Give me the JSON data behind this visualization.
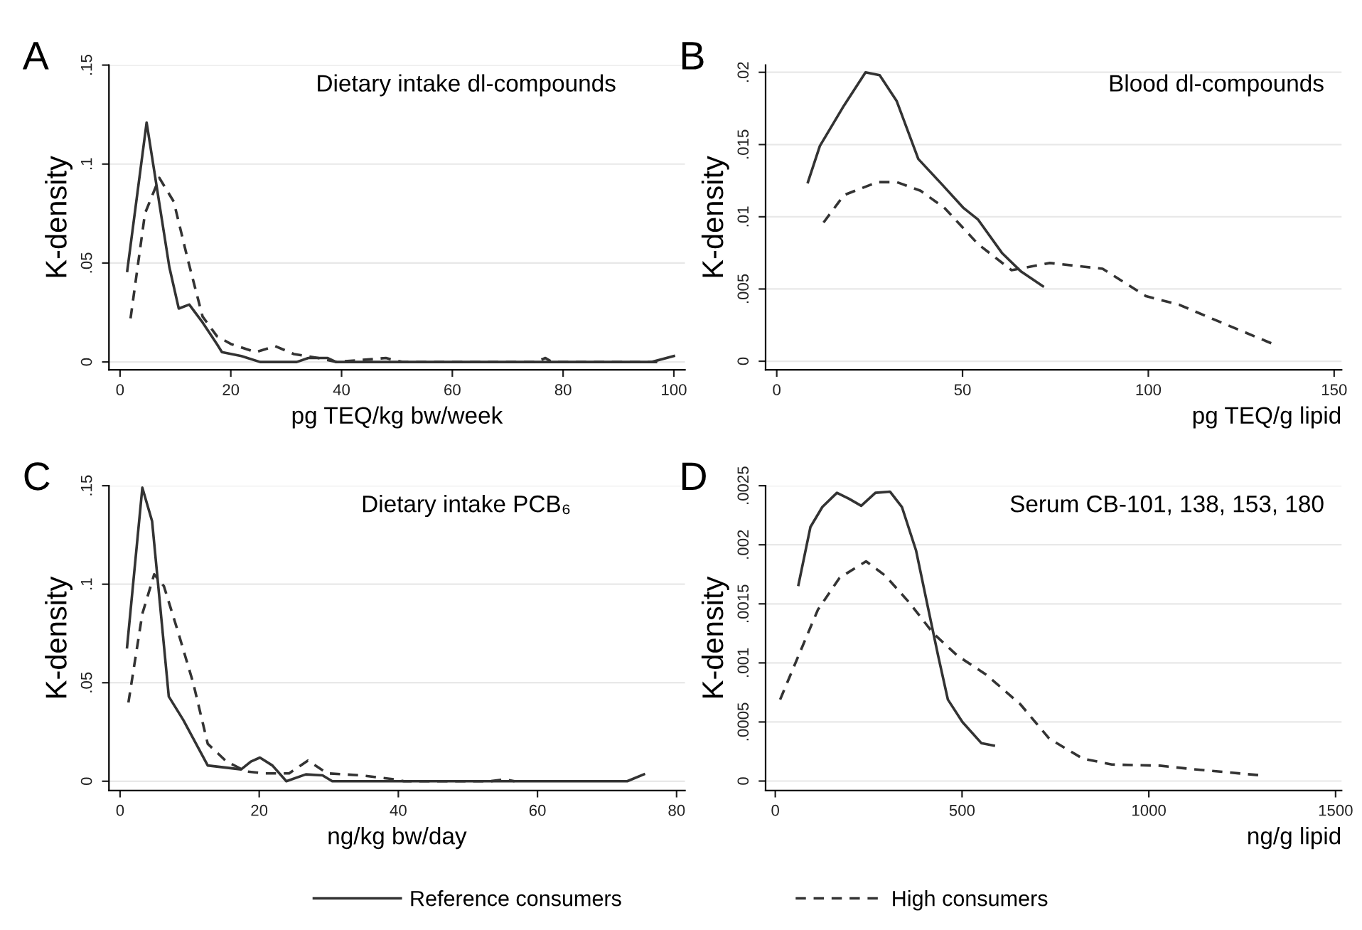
{
  "chart_data": [
    {
      "type": "line",
      "title": "Dietary intake dl-compounds",
      "annotations": [
        "A"
      ],
      "xlabel": "pg TEQ/kg bw/week",
      "ylabel": "K-density",
      "xlim": [
        -2,
        102
      ],
      "xticks": [
        0,
        20,
        40,
        60,
        80,
        100
      ],
      "ylim": [
        -0.004,
        0.15
      ],
      "yticks": [
        {
          "value": 0,
          "label": "0"
        },
        {
          "value": 0.05,
          "label": ".05"
        },
        {
          "value": 0.1,
          "label": ".1"
        },
        {
          "value": 0.15,
          "label": ".15"
        }
      ],
      "grid": "y",
      "legend": "bottom",
      "series": [
        {
          "name": "Reference consumers",
          "color": "#333333",
          "line_style": "solid",
          "x": [
            1.3,
            4.8,
            8.9,
            10.6,
            12.5,
            14.9,
            17.5,
            18.4,
            21.9,
            25.3,
            31.9,
            34,
            37.5,
            39,
            96,
            100
          ],
          "values": [
            0.046,
            0.121,
            0.048,
            0.027,
            0.029,
            0.02,
            0.009,
            0.005,
            0.003,
            0,
            0,
            0.002,
            0.002,
            0,
            0,
            0.003
          ]
        },
        {
          "name": "High consumers",
          "color": "#333333",
          "line_style": "dashed",
          "x": [
            1.9,
            4.5,
            7.1,
            9.7,
            12.3,
            14.9,
            17.5,
            20.1,
            24.5,
            28,
            31.4,
            35.8,
            39,
            48,
            51,
            75,
            76.8,
            78,
            97
          ],
          "values": [
            0.022,
            0.075,
            0.093,
            0.081,
            0.051,
            0.023,
            0.013,
            0.009,
            0.005,
            0.008,
            0.004,
            0.002,
            0,
            0.002,
            0,
            0,
            0.002,
            0,
            0
          ]
        }
      ]
    },
    {
      "type": "line",
      "title": "Blood dl-compounds",
      "annotations": [
        "B"
      ],
      "xlabel": "pg TEQ/g lipid",
      "ylabel": "K-density",
      "xlim": [
        -3,
        152
      ],
      "xticks": [
        0,
        50,
        100,
        150
      ],
      "ylim": [
        -0.0006,
        0.0205
      ],
      "yticks": [
        {
          "value": 0,
          "label": "0"
        },
        {
          "value": 0.005,
          "label": ".005"
        },
        {
          "value": 0.01,
          "label": ".01"
        },
        {
          "value": 0.015,
          "label": ".015"
        },
        {
          "value": 0.02,
          "label": ".02"
        }
      ],
      "grid": "y",
      "series": [
        {
          "color": "#333333",
          "line_style": "solid",
          "x": [
            8.4,
            11.6,
            18.1,
            23.9,
            27.7,
            32.3,
            38.1,
            43.9,
            50.3,
            54.2,
            60.6,
            65.8,
            71.6
          ],
          "values": [
            0.0124,
            0.0149,
            0.0177,
            0.02,
            0.0198,
            0.018,
            0.014,
            0.0124,
            0.0106,
            0.0098,
            0.0075,
            0.0062,
            0.0052
          ]
        },
        {
          "color": "#333333",
          "line_style": "dashed",
          "x": [
            12.6,
            18.1,
            27.1,
            32.3,
            38.7,
            45.2,
            54.2,
            63.2,
            73.5,
            87.7,
            99.4,
            108.4,
            121.3,
            133.5
          ],
          "values": [
            0.0096,
            0.0115,
            0.0124,
            0.0124,
            0.0118,
            0.0106,
            0.0081,
            0.0063,
            0.0068,
            0.0064,
            0.0045,
            0.0039,
            0.0025,
            0.0012
          ]
        }
      ]
    },
    {
      "type": "line",
      "title": "Dietary intake PCB₆",
      "annotations": [
        "C"
      ],
      "xlabel": "ng/kg bw/day",
      "ylabel": "K-density",
      "xlim": [
        -1.6,
        81.2
      ],
      "xticks": [
        0,
        20,
        40,
        60,
        80
      ],
      "ylim": [
        -0.0047,
        0.15
      ],
      "yticks": [
        {
          "value": 0,
          "label": "0"
        },
        {
          "value": 0.05,
          "label": ".05"
        },
        {
          "value": 0.1,
          "label": ".1"
        },
        {
          "value": 0.15,
          "label": ".15"
        }
      ],
      "grid": "y",
      "series": [
        {
          "color": "#333333",
          "line_style": "solid",
          "x": [
            1.0,
            3.2,
            4.6,
            7.0,
            9.1,
            12.6,
            17.4,
            18.8,
            20.1,
            21.9,
            23.9,
            26.7,
            29.1,
            30.5,
            72.9,
            75.3
          ],
          "values": [
            0.068,
            0.149,
            0.132,
            0.043,
            0.031,
            0.008,
            0.006,
            0.01,
            0.012,
            0.008,
            0,
            0.0035,
            0.003,
            0,
            0,
            0.0035
          ]
        },
        {
          "color": "#333333",
          "line_style": "dashed",
          "x": [
            1.2,
            3.2,
            4.9,
            6.3,
            8.4,
            10.5,
            12.6,
            15.3,
            18.1,
            20.8,
            24.3,
            27,
            29.8,
            34.6,
            39.4,
            40.8,
            53.2,
            55.3,
            56.7
          ],
          "values": [
            0.04,
            0.085,
            0.105,
            0.099,
            0.075,
            0.05,
            0.019,
            0.01,
            0.005,
            0.004,
            0.004,
            0.0105,
            0.004,
            0.003,
            0.001,
            0,
            0,
            0.001,
            0
          ]
        }
      ]
    },
    {
      "type": "line",
      "title": "Serum CB-101, 138, 153, 180",
      "annotations": [
        "D"
      ],
      "xlabel": "ng/g lipid",
      "ylabel": "K-density",
      "xlim": [
        -26,
        1516
      ],
      "xticks": [
        0,
        500,
        1000,
        1500
      ],
      "ylim": [
        -8e-05,
        0.0025
      ],
      "yticks": [
        {
          "value": 0,
          "label": "0"
        },
        {
          "value": 0.0005,
          "label": ".0005"
        },
        {
          "value": 0.001,
          "label": ".001"
        },
        {
          "value": 0.0015,
          "label": ".0015"
        },
        {
          "value": 0.002,
          "label": ".002"
        },
        {
          "value": 0.0025,
          "label": ".0025"
        }
      ],
      "grid": "y",
      "series": [
        {
          "color": "#333333",
          "line_style": "solid",
          "x": [
            62,
            94,
            126,
            165,
            197,
            230,
            268,
            307,
            339,
            377,
            410,
            436,
            462,
            501,
            552,
            585
          ],
          "values": [
            0.00166,
            0.00215,
            0.00232,
            0.00244,
            0.00239,
            0.00233,
            0.00244,
            0.00245,
            0.00232,
            0.00195,
            0.00145,
            0.00106,
            0.00069,
            0.0005,
            0.00032,
            0.0003
          ]
        },
        {
          "color": "#333333",
          "line_style": "dashed",
          "x": [
            13,
            62,
            114,
            172,
            243,
            294,
            359,
            423,
            488,
            565,
            656,
            733,
            823,
            901,
            1030,
            1120,
            1294
          ],
          "values": [
            0.00069,
            0.00106,
            0.00145,
            0.00172,
            0.00186,
            0.00174,
            0.00151,
            0.00125,
            0.00106,
            0.0009,
            0.00065,
            0.00036,
            0.00019,
            0.00014,
            0.00013,
            0.0001,
            5e-05
          ]
        }
      ]
    }
  ]
}
